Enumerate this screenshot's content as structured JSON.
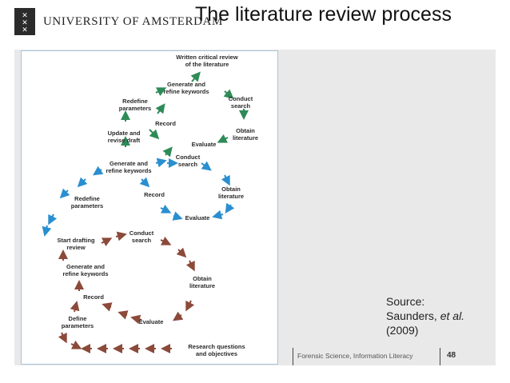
{
  "header": {
    "university_name": "UNIVERSITY OF AMSTERDAM",
    "slide_title": "The literature review process"
  },
  "diagram": {
    "nodes": {
      "written_review": "Written critical review\nof the literature",
      "generate_refine_top": "Generate and\nrefine keywords",
      "conduct_search_top": "Conduct\nsearch",
      "redefine_top": "Redefine\nparameters",
      "record_top": "Record",
      "obtain_top": "Obtain\nliterature",
      "update_revise": "Update and\nrevise draft",
      "evaluate_top": "Evaluate",
      "conduct_search_mid": "Conduct\nsearch",
      "generate_refine_mid": "Generate and\nrefine keywords",
      "record_mid": "Record",
      "obtain_mid": "Obtain\nliterature",
      "redefine_mid": "Redefine\nparameters",
      "evaluate_mid": "Evaluate",
      "start_drafting": "Start drafting\nreview",
      "conduct_search_bot": "Conduct\nsearch",
      "generate_refine_bot": "Generate and\nrefine keywords",
      "obtain_bot": "Obtain\nliterature",
      "record_bot": "Record",
      "define_params": "Define\nparameters",
      "evaluate_bot": "Evaluate",
      "research_questions": "Research questions\nand objectives"
    },
    "arrow_colors": {
      "top_loop": "#2e8b57",
      "middle_loop": "#2a8fcf",
      "bottom_loop": "#8b4a3a"
    }
  },
  "source": {
    "line1": "Source:",
    "line2_prefix": "Saunders, ",
    "line2_italic": "et al.",
    "line3": "(2009)"
  },
  "footer": {
    "course": "Forensic Science, Information Literacy",
    "page_number": "48"
  }
}
